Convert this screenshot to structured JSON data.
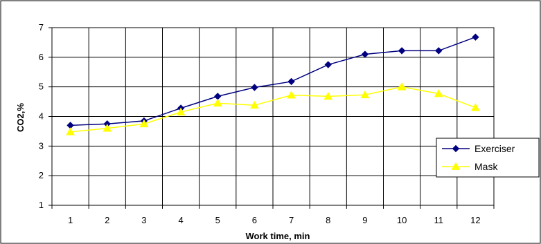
{
  "chart_data": {
    "type": "line",
    "xlabel": "Work time, min",
    "ylabel": "CO2,%",
    "x": [
      1,
      2,
      3,
      4,
      5,
      6,
      7,
      8,
      9,
      10,
      11,
      12
    ],
    "ylim": [
      1,
      7
    ],
    "yticks": [
      1,
      2,
      3,
      4,
      5,
      6,
      7
    ],
    "grid": true,
    "legend_position": "right",
    "series": [
      {
        "name": "Exerciser",
        "color": "#000080",
        "marker": "diamond",
        "values": [
          3.7,
          3.75,
          3.85,
          4.28,
          4.68,
          4.98,
          5.18,
          5.75,
          6.1,
          6.22,
          6.22,
          6.68
        ]
      },
      {
        "name": "Mask",
        "color": "#ffff00",
        "marker": "triangle",
        "values": [
          3.48,
          3.6,
          3.75,
          4.15,
          4.45,
          4.38,
          4.72,
          4.68,
          4.73,
          5.0,
          4.77,
          4.3
        ]
      }
    ]
  }
}
